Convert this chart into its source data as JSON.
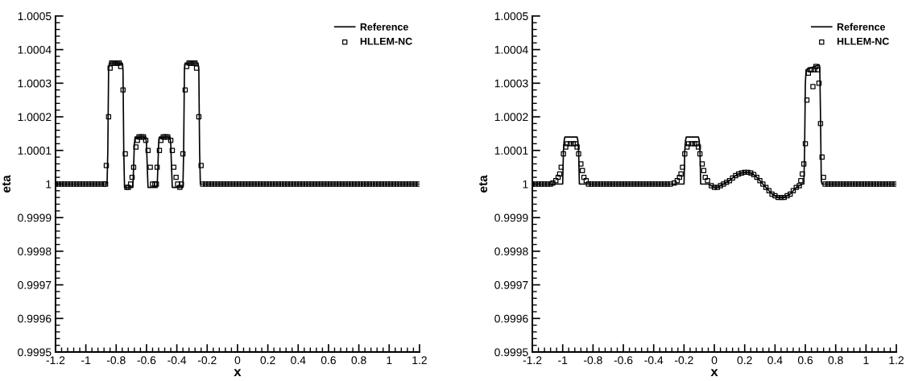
{
  "chart_data": [
    {
      "type": "line",
      "xlabel": "x",
      "ylabel": "eta",
      "xlim": [
        -1.2,
        1.2
      ],
      "ylim": [
        0.9995,
        1.0005
      ],
      "xticks": [
        -1.2,
        -1,
        -0.8,
        -0.6,
        -0.4,
        -0.2,
        0,
        0.2,
        0.4,
        0.6,
        0.8,
        1,
        1.2
      ],
      "yticks": [
        0.9995,
        0.9996,
        0.9997,
        0.9998,
        0.9999,
        1,
        1.0001,
        1.0002,
        1.0003,
        1.0004,
        1.0005
      ],
      "grid": false,
      "legend": "top right",
      "series": [
        {
          "name": "Reference",
          "type": "line",
          "color": "#000000",
          "line_style": "solid",
          "marker": "none",
          "x": [
            -1.2,
            -0.86,
            -0.855,
            -0.85,
            -0.845,
            -0.76,
            -0.755,
            -0.75,
            -0.745,
            -0.69,
            -0.685,
            -0.68,
            -0.675,
            -0.605,
            -0.6,
            -0.595,
            -0.59,
            -0.53,
            -0.525,
            -0.52,
            -0.515,
            -0.445,
            -0.44,
            -0.435,
            -0.43,
            -0.36,
            -0.355,
            -0.35,
            -0.345,
            -0.26,
            -0.255,
            -0.25,
            -0.245,
            1.2
          ],
          "values": [
            1,
            1,
            1.0001,
            1.00034,
            1.00036,
            1.00036,
            1.00034,
            1.0001,
            0.99999,
            0.99999,
            1.00005,
            1.00012,
            1.00014,
            1.00014,
            1.00012,
            1.00005,
            0.99999,
            0.99999,
            1.00005,
            1.00012,
            1.00014,
            1.00014,
            1.00012,
            1.00005,
            0.99999,
            0.99999,
            1.0001,
            1.00034,
            1.00036,
            1.00036,
            1.00034,
            1.0001,
            1,
            1
          ]
        },
        {
          "name": "HLLEM-NC",
          "type": "scatter",
          "color": "#000000",
          "marker": "square",
          "x": [
            -1.2,
            -1.18,
            -1.16,
            -1.14,
            -1.12,
            -1.1,
            -1.08,
            -1.06,
            -1.04,
            -1.02,
            -1,
            -0.98,
            -0.96,
            -0.94,
            -0.92,
            -0.9,
            -0.88,
            -0.87,
            -0.865,
            -0.85,
            -0.84,
            -0.83,
            -0.82,
            -0.81,
            -0.8,
            -0.79,
            -0.78,
            -0.77,
            -0.755,
            -0.74,
            -0.73,
            -0.72,
            -0.705,
            -0.695,
            -0.685,
            -0.67,
            -0.66,
            -0.65,
            -0.64,
            -0.63,
            -0.62,
            -0.605,
            -0.59,
            -0.575,
            -0.56,
            -0.545,
            -0.535,
            -0.53,
            -0.515,
            -0.505,
            -0.49,
            -0.48,
            -0.47,
            -0.46,
            -0.44,
            -0.43,
            -0.42,
            -0.405,
            -0.395,
            -0.38,
            -0.37,
            -0.36,
            -0.345,
            -0.335,
            -0.32,
            -0.31,
            -0.3,
            -0.29,
            -0.28,
            -0.27,
            -0.255,
            -0.24,
            -0.23,
            -0.21,
            -0.19,
            -0.17,
            -0.15,
            -0.13,
            -0.11,
            -0.09,
            -0.07,
            -0.05,
            -0.03,
            -0.01,
            0.01,
            0.03,
            0.05,
            0.07,
            0.09,
            0.11,
            0.13,
            0.15,
            0.17,
            0.19,
            0.21,
            0.23,
            0.25,
            0.27,
            0.29,
            0.31,
            0.33,
            0.35,
            0.37,
            0.39,
            0.41,
            0.43,
            0.45,
            0.47,
            0.49,
            0.51,
            0.53,
            0.55,
            0.57,
            0.59,
            0.61,
            0.63,
            0.65,
            0.67,
            0.69,
            0.71,
            0.73,
            0.75,
            0.77,
            0.79,
            0.81,
            0.83,
            0.85,
            0.87,
            0.89,
            0.91,
            0.93,
            0.95,
            0.97,
            0.99,
            1.01,
            1.03,
            1.05,
            1.07,
            1.09,
            1.11,
            1.13,
            1.15,
            1.17,
            1.19
          ],
          "values": [
            1,
            1,
            1,
            1,
            1,
            1,
            1,
            1,
            1,
            1,
            1,
            1,
            1,
            1,
            1,
            1,
            1,
            1,
            1.000055,
            1.0002,
            1.000345,
            1.00036,
            1.00036,
            1.00036,
            1.00036,
            1.00036,
            1.00036,
            1.00035,
            1.00028,
            1.00009,
            0.99999,
            0.99999,
            1,
            1.00002,
            1.00005,
            1.00011,
            1.00013,
            1.00014,
            1.00014,
            1.00014,
            1.00014,
            1.00013,
            1.0001,
            1.00005,
            1,
            1,
            1,
            1.00005,
            1.0001,
            1.00013,
            1.00014,
            1.00014,
            1.00014,
            1.00014,
            1.00013,
            1.0001,
            1.00005,
            1.00002,
            1,
            0.99999,
            1,
            1.00009,
            1.00028,
            1.00035,
            1.00036,
            1.00036,
            1.00036,
            1.00036,
            1.00036,
            1.000345,
            1.0002,
            1.000055,
            1,
            1,
            1,
            1,
            1,
            1,
            1,
            1,
            1,
            1,
            1,
            1,
            1,
            1,
            1,
            1,
            1,
            1,
            1,
            1,
            1,
            1,
            1,
            1,
            1,
            1,
            1,
            1,
            1,
            1,
            1,
            1,
            1,
            1,
            1,
            1,
            1,
            1,
            1,
            1,
            1,
            1,
            1,
            1,
            1,
            1,
            1,
            1,
            1,
            1,
            1,
            1,
            1,
            1,
            1,
            1,
            1,
            1,
            1,
            1,
            1,
            1,
            1,
            1,
            1,
            1,
            1,
            1,
            1,
            1,
            1,
            1
          ]
        }
      ]
    },
    {
      "type": "line",
      "xlabel": "x",
      "ylabel": "eta",
      "xlim": [
        -1.2,
        1.2
      ],
      "ylim": [
        0.9995,
        1.0005
      ],
      "xticks": [
        -1.2,
        -1,
        -0.8,
        -0.6,
        -0.4,
        -0.2,
        0,
        0.2,
        0.4,
        0.6,
        0.8,
        1,
        1.2
      ],
      "yticks": [
        0.9995,
        0.9996,
        0.9997,
        0.9998,
        0.9999,
        1,
        1.0001,
        1.0002,
        1.0003,
        1.0004,
        1.0005
      ],
      "grid": false,
      "legend": "top right",
      "series": [
        {
          "name": "Reference",
          "type": "line",
          "color": "#000000",
          "line_style": "solid",
          "marker": "none",
          "x": [
            -1.2,
            -1.0,
            -0.995,
            -0.99,
            -0.985,
            -0.905,
            -0.9,
            -0.895,
            -0.89,
            -0.2,
            -0.195,
            -0.19,
            -0.185,
            -0.105,
            -0.1,
            -0.095,
            -0.09,
            -0.04,
            -0.02,
            0,
            0.02,
            0.04,
            0.06,
            0.08,
            0.1,
            0.12,
            0.14,
            0.16,
            0.18,
            0.2,
            0.22,
            0.24,
            0.26,
            0.28,
            0.3,
            0.32,
            0.34,
            0.36,
            0.38,
            0.4,
            0.42,
            0.44,
            0.46,
            0.48,
            0.5,
            0.52,
            0.54,
            0.56,
            0.58,
            0.59,
            0.595,
            0.6,
            0.605,
            0.69,
            0.695,
            0.7,
            0.705,
            0.71,
            1.2
          ],
          "values": [
            1,
            1,
            1.0001,
            1.00013,
            1.00014,
            1.00014,
            1.00013,
            1.0001,
            1,
            1,
            1.0001,
            1.00013,
            1.00014,
            1.00014,
            1.00013,
            1.0001,
            1,
            1,
            0.999995,
            0.99999,
            0.99999,
            0.999995,
            1,
            1.000005,
            1.00001,
            1.000018,
            1.000025,
            1.00003,
            1.000033,
            1.000035,
            1.000035,
            1.000033,
            1.000028,
            1.00002,
            1.00001,
            1,
            0.99999,
            0.99998,
            0.99997,
            0.999965,
            0.99996,
            0.99996,
            0.99996,
            0.999965,
            0.99997,
            0.99998,
            0.99999,
            0.999995,
            1,
            1,
            1.0001,
            1.0003,
            1.00034,
            1.000355,
            1.00035,
            1.0002,
            1.00001,
            1,
            1
          ]
        },
        {
          "name": "HLLEM-NC",
          "type": "scatter",
          "color": "#000000",
          "marker": "square",
          "x": [
            -1.2,
            -1.18,
            -1.16,
            -1.14,
            -1.12,
            -1.1,
            -1.08,
            -1.065,
            -1.045,
            -1.03,
            -1.02,
            -1.01,
            -0.995,
            -0.98,
            -0.97,
            -0.95,
            -0.93,
            -0.915,
            -0.905,
            -0.895,
            -0.88,
            -0.87,
            -0.86,
            -0.845,
            -0.83,
            -0.81,
            -0.79,
            -0.77,
            -0.75,
            -0.73,
            -0.71,
            -0.69,
            -0.67,
            -0.65,
            -0.63,
            -0.61,
            -0.59,
            -0.57,
            -0.55,
            -0.53,
            -0.51,
            -0.49,
            -0.47,
            -0.45,
            -0.43,
            -0.41,
            -0.39,
            -0.37,
            -0.35,
            -0.33,
            -0.31,
            -0.29,
            -0.265,
            -0.245,
            -0.23,
            -0.22,
            -0.21,
            -0.195,
            -0.18,
            -0.17,
            -0.15,
            -0.13,
            -0.115,
            -0.105,
            -0.095,
            -0.08,
            -0.07,
            -0.06,
            -0.045,
            -0.02,
            0,
            0.02,
            0.04,
            0.06,
            0.08,
            0.1,
            0.12,
            0.14,
            0.16,
            0.18,
            0.2,
            0.22,
            0.24,
            0.26,
            0.28,
            0.3,
            0.32,
            0.34,
            0.36,
            0.38,
            0.4,
            0.42,
            0.44,
            0.46,
            0.48,
            0.5,
            0.52,
            0.54,
            0.56,
            0.57,
            0.58,
            0.59,
            0.6,
            0.61,
            0.62,
            0.63,
            0.64,
            0.65,
            0.66,
            0.67,
            0.68,
            0.69,
            0.7,
            0.71,
            0.72,
            0.73,
            0.75,
            0.77,
            0.79,
            0.81,
            0.83,
            0.85,
            0.87,
            0.89,
            0.91,
            0.93,
            0.95,
            0.97,
            0.99,
            1.01,
            1.03,
            1.05,
            1.07,
            1.09,
            1.11,
            1.13,
            1.15,
            1.17,
            1.19
          ],
          "values": [
            1,
            1,
            1,
            1,
            1,
            1,
            1,
            1.000003,
            1.00001,
            1.00002,
            1.00003,
            1.00005,
            1.00009,
            1.00011,
            1.00012,
            1.00012,
            1.00012,
            1.00012,
            1.00011,
            1.00009,
            1.00006,
            1.00004,
            1.00002,
            1.00001,
            1,
            1,
            1,
            1,
            1,
            1,
            1,
            1,
            1,
            1,
            1,
            1,
            1,
            1,
            1,
            1,
            1,
            1,
            1,
            1,
            1,
            1,
            1,
            1,
            1,
            1,
            1,
            1,
            1.000003,
            1.00001,
            1.00002,
            1.00003,
            1.00005,
            1.00009,
            1.00011,
            1.00012,
            1.00012,
            1.00012,
            1.00012,
            1.00011,
            1.00009,
            1.00006,
            1.00004,
            1.00002,
            1.00001,
            0.999995,
            0.99999,
            0.99999,
            0.999995,
            1,
            1.000005,
            1.00001,
            1.000018,
            1.000025,
            1.00003,
            1.000033,
            1.000035,
            1.000035,
            1.000033,
            1.000028,
            1.00002,
            1.00001,
            1,
            0.99999,
            0.99998,
            0.99997,
            0.999965,
            0.99996,
            0.99996,
            0.99996,
            0.999965,
            0.99997,
            0.99998,
            0.99999,
            0.999995,
            1.00001,
            1.00003,
            1.00006,
            1.00012,
            1.00025,
            1.00033,
            1.00034,
            1.00034,
            1.00029,
            1.00034,
            1.00035,
            1.00034,
            1.0003,
            1.00018,
            1.00008,
            1.00002,
            1,
            1,
            1,
            1,
            1,
            1,
            1,
            1,
            1,
            1,
            1,
            1,
            1,
            1,
            1,
            1,
            1,
            1,
            1,
            1,
            1,
            1,
            1,
            1
          ]
        }
      ]
    }
  ]
}
